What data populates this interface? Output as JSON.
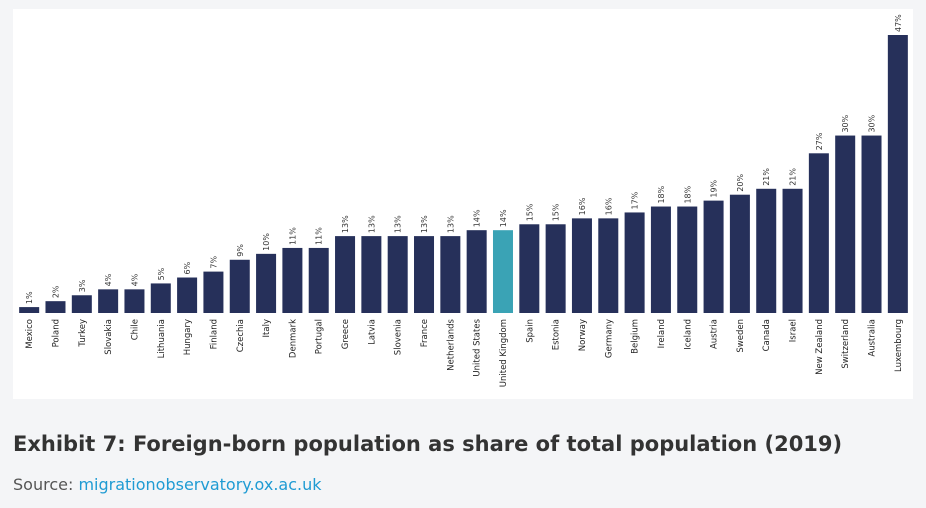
{
  "chart_data": {
    "type": "bar",
    "title": "",
    "xlabel": "",
    "ylabel": "",
    "ylim": [
      0,
      48
    ],
    "grid": false,
    "legend": "none",
    "categories": [
      "Mexico",
      "Poland",
      "Turkey",
      "Slovakia",
      "Chile",
      "Lithuania",
      "Hungary",
      "Finland",
      "Czechia",
      "Italy",
      "Denmark",
      "Portugal",
      "Greece",
      "Latvia",
      "Slovenia",
      "France",
      "Netherlands",
      "United States",
      "United Kingdom",
      "Spain",
      "Estonia",
      "Norway",
      "Germany",
      "Belgium",
      "Ireland",
      "Iceland",
      "Austria",
      "Sweden",
      "Canada",
      "Israel",
      "New Zealand",
      "Switzerland",
      "Australia",
      "Luxembourg"
    ],
    "values": [
      1,
      2,
      3,
      4,
      4,
      5,
      6,
      7,
      9,
      10,
      11,
      11,
      13,
      13,
      13,
      13,
      13,
      14,
      14,
      15,
      15,
      16,
      16,
      17,
      18,
      18,
      19,
      20,
      21,
      21,
      27,
      30,
      30,
      47
    ],
    "value_labels": [
      "1%",
      "2%",
      "3%",
      "4%",
      "4%",
      "5%",
      "6%",
      "7%",
      "9%",
      "10%",
      "11%",
      "11%",
      "13%",
      "13%",
      "13%",
      "13%",
      "13%",
      "14%",
      "14%",
      "15%",
      "15%",
      "16%",
      "16%",
      "17%",
      "18%",
      "18%",
      "19%",
      "20%",
      "21%",
      "21%",
      "27%",
      "30%",
      "30%",
      "47%"
    ],
    "highlight_category": "United Kingdom",
    "colors": {
      "bar": "#26305a",
      "highlight": "#3aa3b5"
    }
  },
  "caption": {
    "title": "Exhibit 7: Foreign-born population as share of total population (2019)",
    "source_prefix": "Source: ",
    "source_link": "migrationobservatory.ox.ac.uk"
  },
  "colors": {
    "link": "#1f9bd3",
    "background": "#f4f5f7",
    "panel": "#ffffff"
  }
}
